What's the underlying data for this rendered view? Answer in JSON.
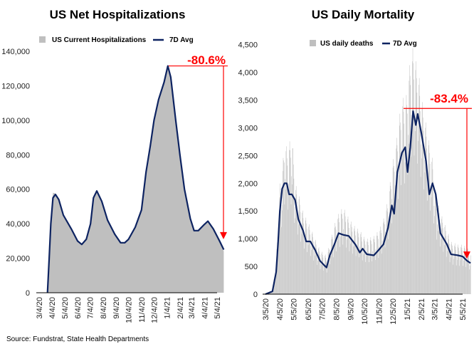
{
  "source": "Source: Fundstrat,  State Health Departments",
  "colors": {
    "area": "#bfbfbf",
    "line": "#0d2361",
    "annotation": "#ff0000"
  },
  "chart_data": [
    {
      "type": "area",
      "title": "US Net Hospitalizations",
      "ylim": [
        0,
        140000
      ],
      "y_ticks": [
        "0",
        "20,000",
        "40,000",
        "60,000",
        "80,000",
        "100,000",
        "120,000",
        "140,000"
      ],
      "y_tick_values": [
        0,
        20000,
        40000,
        60000,
        80000,
        100000,
        120000,
        140000
      ],
      "x_ticks": [
        "3/4/20",
        "4/4/20",
        "5/4/20",
        "6/4/20",
        "7/4/20",
        "8/4/20",
        "9/4/20",
        "10/4/20",
        "11/4/20",
        "12/4/20",
        "1/4/21",
        "2/4/21",
        "3/4/21",
        "4/4/21",
        "5/4/21"
      ],
      "grid": false,
      "legend_position": "top",
      "annotation": "-80.6%",
      "series": [
        {
          "name": "US Current Hospitalizations",
          "kind": "area",
          "x": [
            "3/24/20",
            "3/28/20",
            "4/1/20",
            "4/6/20",
            "4/12/20",
            "4/20/20",
            "5/1/20",
            "5/20/20",
            "6/4/20",
            "6/14/20",
            "6/25/20",
            "7/5/20",
            "7/12/20",
            "7/20/20",
            "8/1/20",
            "8/15/20",
            "9/1/20",
            "9/15/20",
            "9/25/20",
            "10/4/20",
            "10/20/20",
            "11/4/20",
            "11/15/20",
            "11/25/20",
            "12/4/20",
            "12/15/20",
            "12/28/20",
            "1/6/21",
            "1/13/21",
            "1/25/21",
            "2/4/21",
            "2/15/21",
            "3/1/21",
            "3/10/21",
            "3/20/21",
            "4/1/21",
            "4/12/21",
            "4/25/21",
            "5/10/21",
            "5/20/21"
          ],
          "values": [
            0,
            20000,
            40000,
            58000,
            57500,
            54000,
            45000,
            37000,
            30000,
            28000,
            31000,
            40000,
            56000,
            59500,
            53000,
            42000,
            34000,
            29000,
            29000,
            31000,
            38000,
            48000,
            70000,
            85000,
            101000,
            112000,
            123000,
            132000,
            125000,
            100000,
            80000,
            60000,
            43000,
            36000,
            36000,
            39000,
            41500,
            37000,
            30000,
            24000
          ]
        },
        {
          "name": "7D Avg",
          "kind": "line",
          "x": [
            "3/24/20",
            "3/28/20",
            "4/1/20",
            "4/6/20",
            "4/12/20",
            "4/20/20",
            "5/1/20",
            "5/20/20",
            "6/4/20",
            "6/14/20",
            "6/25/20",
            "7/5/20",
            "7/12/20",
            "7/20/20",
            "8/1/20",
            "8/15/20",
            "9/1/20",
            "9/15/20",
            "9/25/20",
            "10/4/20",
            "10/20/20",
            "11/4/20",
            "11/15/20",
            "11/25/20",
            "12/4/20",
            "12/15/20",
            "12/28/20",
            "1/6/21",
            "1/13/21",
            "1/25/21",
            "2/4/21",
            "2/15/21",
            "3/1/21",
            "3/10/21",
            "3/20/21",
            "4/1/21",
            "4/12/21",
            "4/25/21",
            "5/10/21",
            "5/20/21"
          ],
          "values": [
            0,
            20000,
            40000,
            55000,
            57000,
            54000,
            45000,
            37000,
            30000,
            28000,
            31000,
            40000,
            55000,
            59000,
            53000,
            42000,
            34000,
            29000,
            29000,
            31000,
            38000,
            48000,
            70000,
            85000,
            100000,
            112000,
            122000,
            131500,
            125000,
            100000,
            80000,
            60000,
            43000,
            36000,
            36000,
            39000,
            41500,
            37000,
            30000,
            25000
          ]
        }
      ]
    },
    {
      "type": "bar+line",
      "title": "US Daily Mortality",
      "ylim": [
        0,
        4500
      ],
      "y_ticks": [
        "0",
        "500",
        "1,000",
        "1,500",
        "2,000",
        "2,500",
        "3,000",
        "3,500",
        "4,000",
        "4,500"
      ],
      "y_tick_values": [
        0,
        500,
        1000,
        1500,
        2000,
        2500,
        3000,
        3500,
        4000,
        4500
      ],
      "x_ticks": [
        "3/5/20",
        "4/5/20",
        "5/5/20",
        "6/5/20",
        "7/5/20",
        "8/5/20",
        "9/5/20",
        "10/5/20",
        "11/5/20",
        "12/5/20",
        "1/5/21",
        "2/5/21",
        "3/5/21",
        "4/5/21",
        "5/5/21"
      ],
      "grid": false,
      "legend_position": "top",
      "annotation": "-83.4%",
      "series": [
        {
          "name": "US daily deaths",
          "kind": "bar",
          "x": [
            "3/5/20",
            "3/20/20",
            "3/28/20",
            "4/1/20",
            "4/5/20",
            "4/10/20",
            "4/15/20",
            "4/20/20",
            "4/25/20",
            "5/1/20",
            "5/8/20",
            "5/15/20",
            "5/25/20",
            "6/1/20",
            "6/10/20",
            "6/20/20",
            "7/1/20",
            "7/10/20",
            "7/15/20",
            "7/22/20",
            "8/1/20",
            "8/10/20",
            "8/20/20",
            "9/1/20",
            "9/15/20",
            "9/25/20",
            "10/1/20",
            "10/10/20",
            "10/25/20",
            "11/5/20",
            "11/15/20",
            "11/25/20",
            "12/3/20",
            "12/8/20",
            "12/15/20",
            "12/25/20",
            "1/1/21",
            "1/6/21",
            "1/12/21",
            "1/18/21",
            "1/24/21",
            "1/28/21",
            "2/5/21",
            "2/15/21",
            "2/22/21",
            "3/1/21",
            "3/8/21",
            "3/18/21",
            "4/1/21",
            "4/10/21",
            "4/25/21",
            "5/5/21",
            "5/15/21",
            "5/22/21"
          ],
          "values": [
            0,
            80,
            600,
            1300,
            1900,
            2100,
            2700,
            2500,
            2600,
            2750,
            1900,
            1750,
            1400,
            1300,
            1150,
            950,
            750,
            700,
            650,
            900,
            1200,
            1400,
            1500,
            1300,
            1150,
            1100,
            1000,
            950,
            1000,
            1100,
            1300,
            1650,
            2200,
            2400,
            2800,
            3400,
            3300,
            3600,
            4100,
            4250,
            4000,
            3900,
            3400,
            2900,
            2600,
            2300,
            1700,
            1400,
            1100,
            900,
            850,
            850,
            800,
            700
          ]
        },
        {
          "name": "7D Avg",
          "kind": "line",
          "x": [
            "3/5/20",
            "3/20/20",
            "3/28/20",
            "4/1/20",
            "4/5/20",
            "4/10/20",
            "4/15/20",
            "4/20/20",
            "4/25/20",
            "5/1/20",
            "5/8/20",
            "5/15/20",
            "5/25/20",
            "6/1/20",
            "6/10/20",
            "6/20/20",
            "7/1/20",
            "7/10/20",
            "7/15/20",
            "7/22/20",
            "8/1/20",
            "8/10/20",
            "8/20/20",
            "9/1/20",
            "9/15/20",
            "9/25/20",
            "10/1/20",
            "10/10/20",
            "10/25/20",
            "11/5/20",
            "11/15/20",
            "11/25/20",
            "12/3/20",
            "12/8/20",
            "12/15/20",
            "12/25/20",
            "1/1/21",
            "1/6/21",
            "1/12/21",
            "1/18/21",
            "1/24/21",
            "1/28/21",
            "2/5/21",
            "2/15/21",
            "2/22/21",
            "3/1/21",
            "3/8/21",
            "3/18/21",
            "4/1/21",
            "4/10/21",
            "4/25/21",
            "5/5/21",
            "5/15/21",
            "5/22/21"
          ],
          "values": [
            0,
            50,
            400,
            900,
            1500,
            1900,
            2000,
            2000,
            1800,
            1800,
            1700,
            1350,
            1150,
            950,
            950,
            800,
            600,
            520,
            480,
            700,
            900,
            1100,
            1070,
            1050,
            900,
            750,
            820,
            720,
            700,
            800,
            900,
            1200,
            1600,
            1450,
            2200,
            2550,
            2650,
            2200,
            2650,
            3300,
            3050,
            3250,
            2900,
            2400,
            1800,
            2000,
            1800,
            1100,
            900,
            720,
            700,
            680,
            600,
            560
          ]
        }
      ]
    }
  ]
}
